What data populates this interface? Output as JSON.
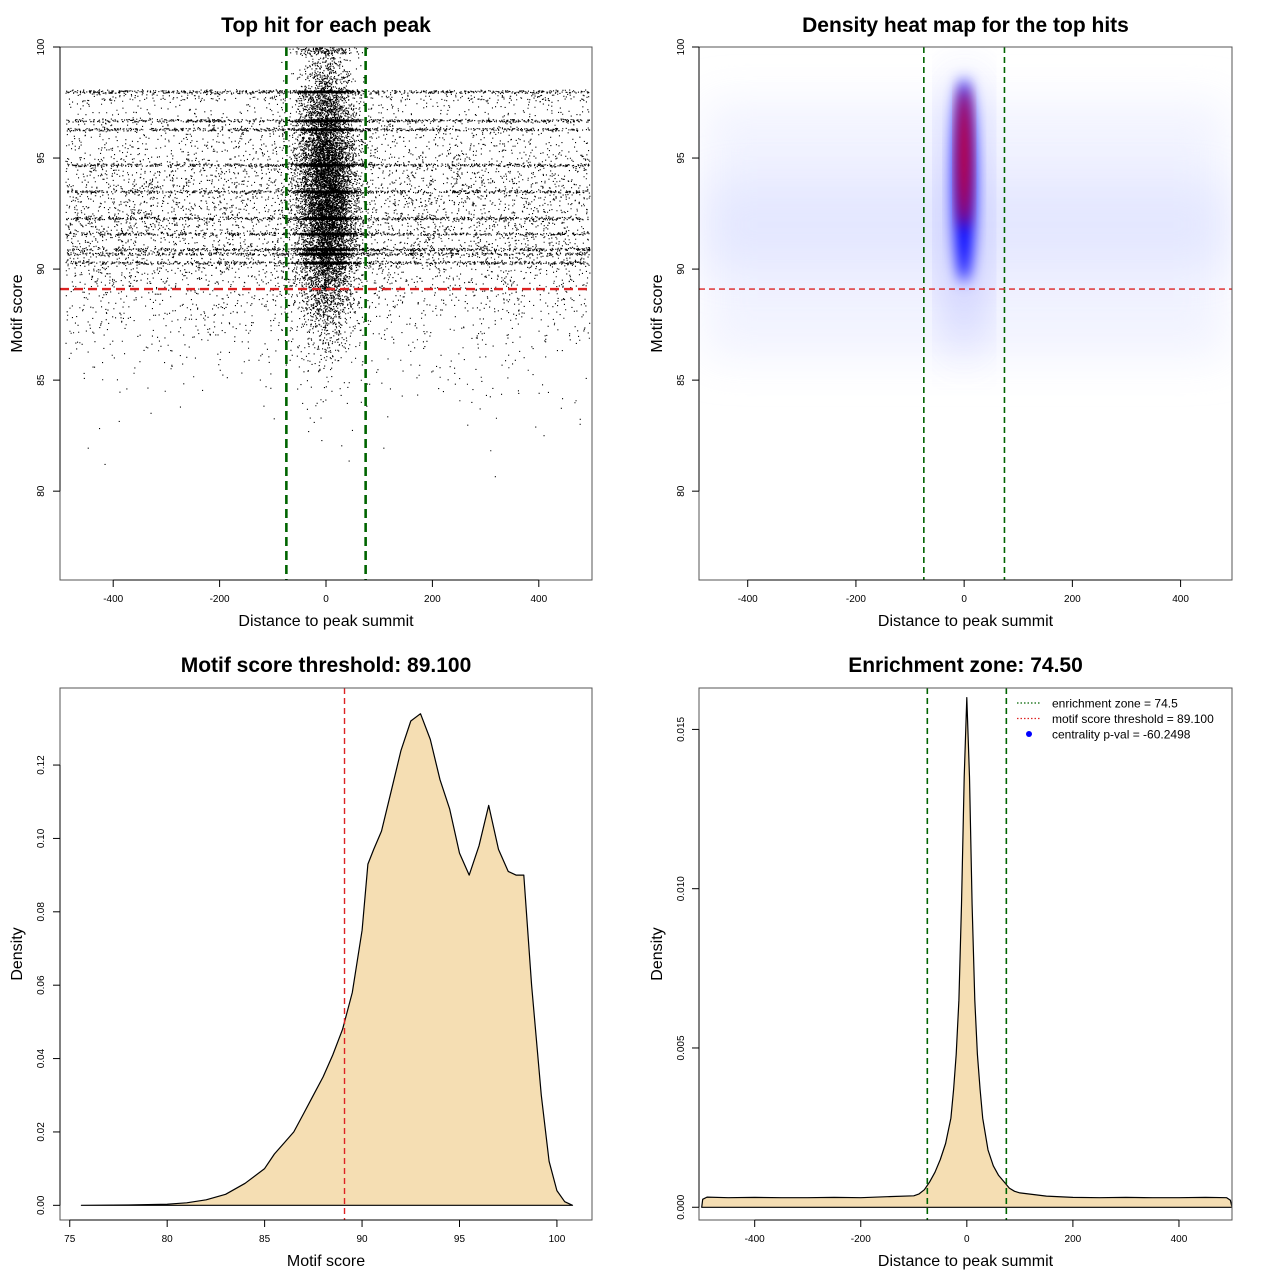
{
  "chart_data": [
    {
      "type": "scatter",
      "title": "Top hit for each peak",
      "xlabel": "Distance to peak summit",
      "ylabel": "Motif score",
      "xlim": [
        -500,
        500
      ],
      "ylim": [
        76,
        100
      ],
      "xticks": [
        -400,
        -200,
        0,
        200,
        400
      ],
      "yticks": [
        80,
        85,
        90,
        95,
        100
      ],
      "xtick_labels": [
        "-400",
        "-200",
        "0",
        "200",
        "400"
      ],
      "ytick_labels": [
        "80",
        "85",
        "90",
        "95",
        "100"
      ],
      "vlines": [
        -74.5,
        74.5
      ],
      "hline": 89.1,
      "vline_color": "#006400",
      "hline_color": "#dd2222",
      "point_color": "#000000",
      "score_bands": [
        98.0,
        96.7,
        96.3,
        94.7,
        93.5,
        92.3,
        91.6,
        90.9,
        90.7,
        90.3
      ]
    },
    {
      "type": "heatmap",
      "title": "Density heat map for the top hits",
      "xlabel": "Distance to peak summit",
      "ylabel": "Motif score",
      "xlim": [
        -490,
        495
      ],
      "ylim": [
        76,
        100
      ],
      "xticks": [
        -400,
        -200,
        0,
        200,
        400
      ],
      "yticks": [
        80,
        85,
        90,
        95,
        100
      ],
      "xtick_labels": [
        "-400",
        "-200",
        "0",
        "200",
        "400"
      ],
      "ytick_labels": [
        "80",
        "85",
        "90",
        "95",
        "100"
      ],
      "vlines": [
        -74.5,
        74.5
      ],
      "hline": 89.1,
      "vline_color": "#006400",
      "hline_color": "#dd2222",
      "color_low": "#ffffff",
      "color_mid": "#0000ff",
      "color_high": "#ff0000"
    },
    {
      "type": "area",
      "title": "Motif score threshold: 89.100",
      "xlabel": "Motif score",
      "ylabel": "Density",
      "xlim": [
        74.5,
        101.8
      ],
      "ylim": [
        -0.004,
        0.141
      ],
      "xticks": [
        75,
        80,
        85,
        90,
        95,
        100
      ],
      "yticks": [
        0,
        0.02,
        0.04,
        0.06,
        0.08,
        0.1,
        0.12
      ],
      "xtick_labels": [
        "75",
        "80",
        "85",
        "90",
        "95",
        "100"
      ],
      "ytick_labels": [
        "0.00",
        "0.02",
        "0.04",
        "0.06",
        "0.08",
        "0.10",
        "0.12"
      ],
      "vline": 89.1,
      "vline_color": "#dd2222",
      "fill_color": "#f5deb3",
      "x": [
        75.6,
        78,
        80,
        81,
        82,
        83,
        84,
        85,
        85.5,
        86,
        86.5,
        87,
        87.5,
        88,
        88.5,
        89,
        89.5,
        90,
        90.3,
        90.6,
        91,
        91.5,
        92,
        92.5,
        93,
        93.5,
        94,
        94.5,
        95,
        95.5,
        96,
        96.5,
        97,
        97.5,
        97.9,
        98.3,
        98.7,
        99.2,
        99.6,
        100,
        100.4,
        100.8
      ],
      "y": [
        0.0,
        0.0001,
        0.0003,
        0.0007,
        0.0015,
        0.003,
        0.006,
        0.01,
        0.014,
        0.017,
        0.02,
        0.025,
        0.03,
        0.035,
        0.041,
        0.048,
        0.058,
        0.075,
        0.093,
        0.097,
        0.102,
        0.113,
        0.124,
        0.132,
        0.134,
        0.127,
        0.116,
        0.108,
        0.096,
        0.09,
        0.098,
        0.109,
        0.097,
        0.091,
        0.09,
        0.09,
        0.06,
        0.03,
        0.012,
        0.004,
        0.001,
        0.0
      ]
    },
    {
      "type": "area",
      "title": "Enrichment zone: 74.50",
      "xlabel": "Distance to peak summit",
      "ylabel": "Density",
      "xlim": [
        -505,
        500
      ],
      "ylim": [
        -0.0004,
        0.0163
      ],
      "xticks": [
        -400,
        -200,
        0,
        200,
        400
      ],
      "yticks": [
        0,
        0.005,
        0.01,
        0.015
      ],
      "xtick_labels": [
        "-400",
        "-200",
        "0",
        "200",
        "400"
      ],
      "ytick_labels": [
        "0.000",
        "0.005",
        "0.010",
        "0.015"
      ],
      "vlines": [
        -74.5,
        74.5
      ],
      "vline_color": "#006400",
      "fill_color": "#f5deb3",
      "x": [
        -500,
        -498,
        -490,
        -450,
        -400,
        -350,
        -300,
        -250,
        -200,
        -150,
        -100,
        -90,
        -80,
        -70,
        -60,
        -50,
        -40,
        -30,
        -25,
        -20,
        -15,
        -10,
        -5,
        0,
        5,
        10,
        15,
        20,
        25,
        30,
        40,
        50,
        60,
        70,
        80,
        90,
        100,
        150,
        200,
        250,
        300,
        350,
        400,
        450,
        490,
        497,
        500
      ],
      "y": [
        0.0,
        0.00025,
        0.00032,
        0.0003,
        0.00031,
        0.0003,
        0.0003,
        0.00031,
        0.0003,
        0.00033,
        0.00036,
        0.00042,
        0.00055,
        0.0008,
        0.0011,
        0.0015,
        0.002,
        0.0028,
        0.0037,
        0.0048,
        0.0065,
        0.0095,
        0.0135,
        0.016,
        0.0135,
        0.0095,
        0.0065,
        0.0048,
        0.0037,
        0.0028,
        0.0018,
        0.0013,
        0.001,
        0.0008,
        0.0006,
        0.0005,
        0.00045,
        0.00035,
        0.00031,
        0.0003,
        0.00031,
        0.0003,
        0.0003,
        0.00031,
        0.0003,
        0.00022,
        0.0
      ],
      "legend": [
        {
          "label": "enrichment zone = 74.5",
          "color": "#006400",
          "kind": "dotted"
        },
        {
          "label": "motif score threshold = 89.100",
          "color": "#dd2222",
          "kind": "dotted"
        },
        {
          "label": "centrality p-val = -60.2498",
          "color": "#0000ff",
          "kind": "point"
        }
      ],
      "legend_position": "top-right"
    }
  ]
}
